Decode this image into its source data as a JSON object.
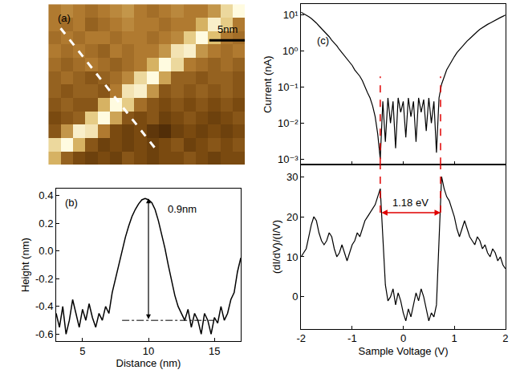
{
  "chart_data": [
    {
      "type": "heatmap",
      "label": "(a)",
      "tick_labels": false,
      "zlim": [
        0,
        1
      ],
      "z": [
        [
          0.5,
          0.55,
          0.5,
          0.45,
          0.5,
          0.55,
          0.6,
          0.5,
          0.45,
          0.5,
          0.55,
          0.5,
          0.5,
          0.6,
          0.85,
          1.0
        ],
        [
          0.5,
          0.45,
          0.5,
          0.4,
          0.45,
          0.5,
          0.55,
          0.5,
          0.5,
          0.45,
          0.5,
          0.5,
          0.7,
          0.95,
          0.8,
          0.5
        ],
        [
          0.45,
          0.5,
          0.45,
          0.5,
          0.5,
          0.45,
          0.5,
          0.5,
          0.45,
          0.5,
          0.55,
          0.8,
          1.0,
          0.75,
          0.5,
          0.45
        ],
        [
          0.5,
          0.45,
          0.5,
          0.45,
          0.4,
          0.5,
          0.45,
          0.5,
          0.5,
          0.6,
          0.9,
          0.95,
          0.6,
          0.5,
          0.45,
          0.5
        ],
        [
          0.45,
          0.4,
          0.45,
          0.5,
          0.45,
          0.4,
          0.45,
          0.5,
          0.7,
          1.0,
          0.85,
          0.5,
          0.45,
          0.4,
          0.45,
          0.4
        ],
        [
          0.4,
          0.45,
          0.4,
          0.35,
          0.4,
          0.45,
          0.55,
          0.85,
          1.0,
          0.65,
          0.4,
          0.4,
          0.35,
          0.4,
          0.4,
          0.35
        ],
        [
          0.4,
          0.35,
          0.4,
          0.4,
          0.35,
          0.5,
          0.9,
          0.95,
          0.6,
          0.35,
          0.4,
          0.35,
          0.4,
          0.35,
          0.4,
          0.35
        ],
        [
          0.35,
          0.4,
          0.35,
          0.35,
          0.7,
          1.0,
          0.8,
          0.45,
          0.35,
          0.3,
          0.35,
          0.3,
          0.35,
          0.3,
          0.35,
          0.3
        ],
        [
          0.3,
          0.35,
          0.4,
          0.8,
          1.0,
          0.65,
          0.35,
          0.3,
          0.35,
          0.25,
          0.3,
          0.35,
          0.3,
          0.25,
          0.3,
          0.35
        ],
        [
          0.35,
          0.6,
          0.95,
          0.9,
          0.5,
          0.3,
          0.25,
          0.3,
          0.2,
          0.15,
          0.25,
          0.3,
          0.25,
          0.3,
          0.25,
          0.3
        ],
        [
          0.85,
          1.0,
          0.7,
          0.35,
          0.25,
          0.3,
          0.25,
          0.3,
          0.25,
          0.3,
          0.35,
          0.25,
          0.3,
          0.35,
          0.3,
          0.35
        ],
        [
          0.7,
          0.4,
          0.3,
          0.25,
          0.3,
          0.25,
          0.35,
          0.3,
          0.25,
          0.3,
          0.3,
          0.35,
          0.3,
          0.25,
          0.3,
          0.3
        ]
      ],
      "scale_bar": {
        "text": "5nm",
        "x": [
          12.6,
          15.5
        ],
        "y": 2.2
      },
      "profile_line": {
        "x": [
          0.5,
          8.3
        ],
        "y": [
          1.3,
          10.4
        ]
      }
    },
    {
      "type": "line",
      "label": "(b)",
      "color": "#000000",
      "xlabel": "Distance (nm)",
      "ylabel": "Height (nm)",
      "xlim": [
        3,
        17
      ],
      "xticks": [
        5,
        10,
        15
      ],
      "ylim": [
        -0.65,
        0.45
      ],
      "yticks": [
        -0.6,
        -0.4,
        -0.2,
        {
          "value": 0,
          "label": "0.0"
        },
        0.2,
        0.4
      ],
      "x": [
        3,
        3.25,
        3.5,
        3.75,
        4,
        4.25,
        4.5,
        4.75,
        5,
        5.25,
        5.5,
        5.75,
        6,
        6.25,
        6.5,
        6.75,
        7,
        7.25,
        7.5,
        7.75,
        8,
        8.25,
        8.5,
        8.75,
        9,
        9.25,
        9.5,
        9.75,
        10,
        10.25,
        10.5,
        10.75,
        11,
        11.25,
        11.5,
        11.75,
        12,
        12.25,
        12.5,
        12.75,
        13,
        13.25,
        13.5,
        13.75,
        14,
        14.25,
        14.5,
        14.75,
        15,
        15.25,
        15.5,
        15.75,
        16,
        16.25,
        16.5,
        16.75,
        17
      ],
      "values": [
        -0.45,
        -0.55,
        -0.4,
        -0.6,
        -0.5,
        -0.35,
        -0.45,
        -0.55,
        -0.42,
        -0.5,
        -0.38,
        -0.48,
        -0.55,
        -0.45,
        -0.5,
        -0.4,
        -0.45,
        -0.3,
        -0.2,
        -0.1,
        0.0,
        0.1,
        0.18,
        0.25,
        0.3,
        0.34,
        0.37,
        0.38,
        0.37,
        0.35,
        0.3,
        0.22,
        0.12,
        0.02,
        -0.1,
        -0.22,
        -0.32,
        -0.4,
        -0.45,
        -0.5,
        -0.42,
        -0.55,
        -0.45,
        -0.5,
        -0.6,
        -0.45,
        -0.5,
        -0.6,
        -0.48,
        -0.52,
        -0.4,
        -0.5,
        -0.45,
        -0.35,
        -0.3,
        -0.15,
        -0.05
      ],
      "baseline": {
        "x": [
          8,
          15
        ],
        "y": -0.5
      },
      "height_marker": {
        "text": "0.9nm",
        "x": 10,
        "y": [
          -0.5,
          0.38
        ]
      }
    },
    {
      "type": "line",
      "label": "(c)",
      "color": "#000000",
      "log": "y",
      "tick_labels": "y",
      "ylabel": "Current (nA)",
      "xlim": [
        -2,
        2
      ],
      "xticks": [
        -2,
        -1,
        0,
        1,
        2
      ],
      "ylim": [
        0.0007,
        20
      ],
      "yticks": [
        {
          "value": 0.001,
          "label": "10⁻³"
        },
        {
          "value": 0.01,
          "label": "10⁻²"
        },
        {
          "value": 0.1,
          "label": "10⁻¹"
        },
        {
          "value": 1,
          "label": "10⁰"
        },
        {
          "value": 10,
          "label": "10¹"
        }
      ],
      "x": [
        -2,
        -1.95,
        -1.9,
        -1.85,
        -1.8,
        -1.75,
        -1.7,
        -1.65,
        -1.6,
        -1.55,
        -1.5,
        -1.45,
        -1.4,
        -1.35,
        -1.3,
        -1.25,
        -1.2,
        -1.15,
        -1.1,
        -1.05,
        -1,
        -0.95,
        -0.9,
        -0.85,
        -0.8,
        -0.75,
        -0.7,
        -0.65,
        -0.6,
        -0.55,
        -0.5,
        -0.45,
        -0.4,
        -0.35,
        -0.3,
        -0.25,
        -0.2,
        -0.15,
        -0.1,
        -0.05,
        0,
        0.05,
        0.1,
        0.15,
        0.2,
        0.25,
        0.3,
        0.35,
        0.4,
        0.45,
        0.5,
        0.55,
        0.6,
        0.65,
        0.7,
        0.75,
        0.8,
        0.85,
        0.9,
        0.95,
        1,
        1.05,
        1.1,
        1.15,
        1.2,
        1.25,
        1.3,
        1.35,
        1.4,
        1.45,
        1.5,
        1.55,
        1.6,
        1.65,
        1.7,
        1.75,
        1.8,
        1.85,
        1.9,
        1.95,
        2
      ],
      "values": [
        12,
        11,
        10,
        9,
        8,
        7,
        6,
        5,
        4.2,
        3.5,
        3,
        2.5,
        2,
        1.7,
        1.4,
        1.1,
        0.9,
        0.75,
        0.6,
        0.5,
        0.4,
        0.3,
        0.25,
        0.2,
        0.15,
        0.1,
        0.07,
        0.05,
        0.03,
        0.015,
        0.005,
        0.001,
        0.04,
        0.003,
        0.05,
        0.01,
        0.04,
        0.002,
        0.05,
        0.02,
        0.04,
        0.004,
        0.05,
        0.015,
        0.04,
        0.003,
        0.05,
        0.02,
        0.045,
        0.006,
        0.05,
        0.01,
        0.04,
        0.0015,
        0.05,
        0.12,
        0.2,
        0.3,
        0.4,
        0.55,
        0.7,
        0.9,
        1.1,
        1.3,
        1.6,
        1.9,
        2.2,
        2.6,
        3,
        3.5,
        4,
        4.5,
        5,
        5.5,
        6,
        6.6,
        7.2,
        7.8,
        8.5,
        9.2,
        10
      ],
      "gap_edges": [
        -0.45,
        0.73
      ]
    },
    {
      "type": "line",
      "color": "#000000",
      "xlabel": "Sample Voltage (V)",
      "ylabel": "(dI/dV)/(I/V)",
      "xlim": [
        -2,
        2
      ],
      "xticks": [
        -2,
        -1,
        0,
        1,
        2
      ],
      "ylim": [
        -8,
        33
      ],
      "yticks": [
        0,
        10,
        20,
        30
      ],
      "x": [
        -2,
        -1.95,
        -1.9,
        -1.85,
        -1.8,
        -1.75,
        -1.7,
        -1.65,
        -1.6,
        -1.55,
        -1.5,
        -1.45,
        -1.4,
        -1.35,
        -1.3,
        -1.25,
        -1.2,
        -1.15,
        -1.1,
        -1.05,
        -1,
        -0.95,
        -0.9,
        -0.85,
        -0.8,
        -0.75,
        -0.7,
        -0.65,
        -0.6,
        -0.55,
        -0.5,
        -0.45,
        -0.4,
        -0.35,
        -0.3,
        -0.25,
        -0.2,
        -0.15,
        -0.1,
        -0.05,
        0,
        0.05,
        0.1,
        0.15,
        0.2,
        0.25,
        0.3,
        0.35,
        0.4,
        0.45,
        0.5,
        0.55,
        0.6,
        0.65,
        0.7,
        0.75,
        0.8,
        0.85,
        0.9,
        0.95,
        1,
        1.05,
        1.1,
        1.15,
        1.2,
        1.25,
        1.3,
        1.35,
        1.4,
        1.45,
        1.5,
        1.55,
        1.6,
        1.65,
        1.7,
        1.75,
        1.8,
        1.85,
        1.9,
        1.95,
        2
      ],
      "values": [
        10,
        11,
        12,
        15,
        18,
        20,
        19,
        16,
        14,
        13,
        14,
        16,
        15,
        12,
        10,
        11,
        13,
        11,
        9,
        11,
        13,
        14,
        16,
        15,
        17,
        19,
        20,
        21,
        22,
        23,
        25,
        27,
        15,
        3,
        -1,
        0,
        2,
        -2,
        1,
        -1,
        -4,
        -6,
        -3,
        -5,
        -2,
        1,
        -1,
        2,
        0,
        -3,
        -6,
        -4,
        -5,
        -2,
        15,
        30,
        27,
        25,
        24,
        22,
        20,
        17,
        15,
        17,
        19,
        17,
        15,
        14,
        13,
        15,
        14,
        12,
        13,
        11,
        10,
        12,
        11,
        9,
        10,
        8,
        7
      ],
      "gap": {
        "text": "1.18 eV",
        "x": [
          -0.45,
          0.73
        ],
        "y": 21
      }
    }
  ]
}
